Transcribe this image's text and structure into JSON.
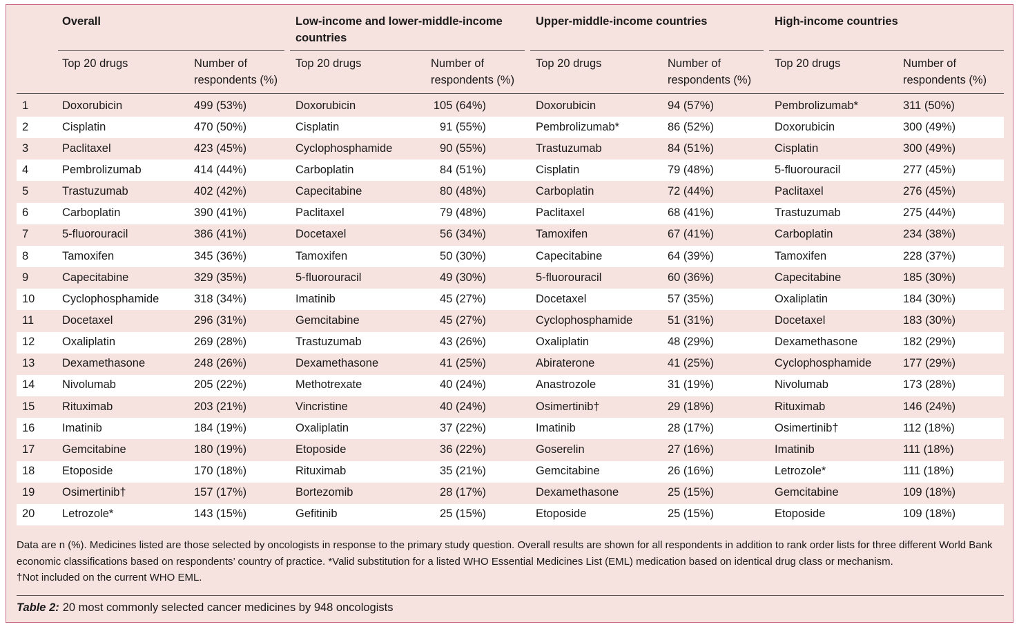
{
  "table": {
    "groups": [
      {
        "title": "Overall",
        "col1": "Top 20 drugs",
        "col2": "Number of respondents (%)"
      },
      {
        "title": "Low-income and lower-middle-income countries",
        "col1": "Top 20 drugs",
        "col2": "Number of respondents (%)"
      },
      {
        "title": "Upper-middle-income countries",
        "col1": "Top 20 drugs",
        "col2": "Number of respondents (%)"
      },
      {
        "title": "High-income countries",
        "col1": "Top 20 drugs",
        "col2": "Number of respondents (%)"
      }
    ],
    "rows": [
      [
        1,
        "Doxorubicin",
        "499 (53%)",
        "Doxorubicin",
        "105 (64%)",
        "Doxorubicin",
        "94 (57%)",
        "Pembrolizumab*",
        "311 (50%)"
      ],
      [
        2,
        "Cisplatin",
        "470 (50%)",
        "Cisplatin",
        "91 (55%)",
        "Pembrolizumab*",
        "86 (52%)",
        "Doxorubicin",
        "300 (49%)"
      ],
      [
        3,
        "Paclitaxel",
        "423 (45%)",
        "Cyclophosphamide",
        "90 (55%)",
        "Trastuzumab",
        "84 (51%)",
        "Cisplatin",
        "300 (49%)"
      ],
      [
        4,
        "Pembrolizumab",
        "414 (44%)",
        "Carboplatin",
        "84 (51%)",
        "Cisplatin",
        "79 (48%)",
        "5-fluorouracil",
        "277 (45%)"
      ],
      [
        5,
        "Trastuzumab",
        "402 (42%)",
        "Capecitabine",
        "80 (48%)",
        "Carboplatin",
        "72 (44%)",
        "Paclitaxel",
        "276 (45%)"
      ],
      [
        6,
        "Carboplatin",
        "390 (41%)",
        "Paclitaxel",
        "79 (48%)",
        "Paclitaxel",
        "68 (41%)",
        "Trastuzumab",
        "275 (44%)"
      ],
      [
        7,
        "5-fluorouracil",
        "386 (41%)",
        "Docetaxel",
        "56 (34%)",
        "Tamoxifen",
        "67 (41%)",
        "Carboplatin",
        "234 (38%)"
      ],
      [
        8,
        "Tamoxifen",
        "345 (36%)",
        "Tamoxifen",
        "50 (30%)",
        "Capecitabine",
        "64 (39%)",
        "Tamoxifen",
        "228 (37%)"
      ],
      [
        9,
        "Capecitabine",
        "329 (35%)",
        "5-fluorouracil",
        "49 (30%)",
        "5-fluorouracil",
        "60 (36%)",
        "Capecitabine",
        "185 (30%)"
      ],
      [
        10,
        "Cyclophosphamide",
        "318 (34%)",
        "Imatinib",
        "45 (27%)",
        "Docetaxel",
        "57 (35%)",
        "Oxaliplatin",
        "184 (30%)"
      ],
      [
        11,
        "Docetaxel",
        "296 (31%)",
        "Gemcitabine",
        "45 (27%)",
        "Cyclophosphamide",
        "51 (31%)",
        "Docetaxel",
        "183 (30%)"
      ],
      [
        12,
        "Oxaliplatin",
        "269 (28%)",
        "Trastuzumab",
        "43 (26%)",
        "Oxaliplatin",
        "48 (29%)",
        "Dexamethasone",
        "182 (29%)"
      ],
      [
        13,
        "Dexamethasone",
        "248 (26%)",
        "Dexamethasone",
        "41 (25%)",
        "Abiraterone",
        "41 (25%)",
        "Cyclophosphamide",
        "177 (29%)"
      ],
      [
        14,
        "Nivolumab",
        "205 (22%)",
        "Methotrexate",
        "40 (24%)",
        "Anastrozole",
        "31 (19%)",
        "Nivolumab",
        "173 (28%)"
      ],
      [
        15,
        "Rituximab",
        "203 (21%)",
        "Vincristine",
        "40 (24%)",
        "Osimertinib†",
        "29 (18%)",
        "Rituximab",
        "146 (24%)"
      ],
      [
        16,
        "Imatinib",
        "184 (19%)",
        "Oxaliplatin",
        "37 (22%)",
        "Imatinib",
        "28 (17%)",
        "Osimertinib†",
        "112 (18%)"
      ],
      [
        17,
        "Gemcitabine",
        "180 (19%)",
        "Etoposide",
        "36 (22%)",
        "Goserelin",
        "27 (16%)",
        "Imatinib",
        "111 (18%)"
      ],
      [
        18,
        "Etoposide",
        "170 (18%)",
        "Rituximab",
        "35 (21%)",
        "Gemcitabine",
        "26 (16%)",
        "Letrozole*",
        "111 (18%)"
      ],
      [
        19,
        "Osimertinib†",
        "157 (17%)",
        "Bortezomib",
        "28 (17%)",
        "Dexamethasone",
        "25 (15%)",
        "Gemcitabine",
        "109 (18%)"
      ],
      [
        20,
        "Letrozole*",
        "143 (15%)",
        "Gefitinib",
        "25 (15%)",
        "Etoposide",
        "25 (15%)",
        "Etoposide",
        "109 (18%)"
      ]
    ],
    "footnotes": [
      "Data are n (%). Medicines listed are those selected by oncologists in response to the primary study question. Overall results are shown for all respondents in addition to rank order lists for three different World Bank economic classifications based on respondents’ country of practice. *Valid substitution for a listed WHO Essential Medicines List (EML) medication based on identical drug class or mechanism.",
      "†Not included on the current WHO EML."
    ],
    "caption": {
      "label": "Table 2:",
      "text": "20 most commonly selected cancer medicines by 948 oncologists"
    }
  }
}
